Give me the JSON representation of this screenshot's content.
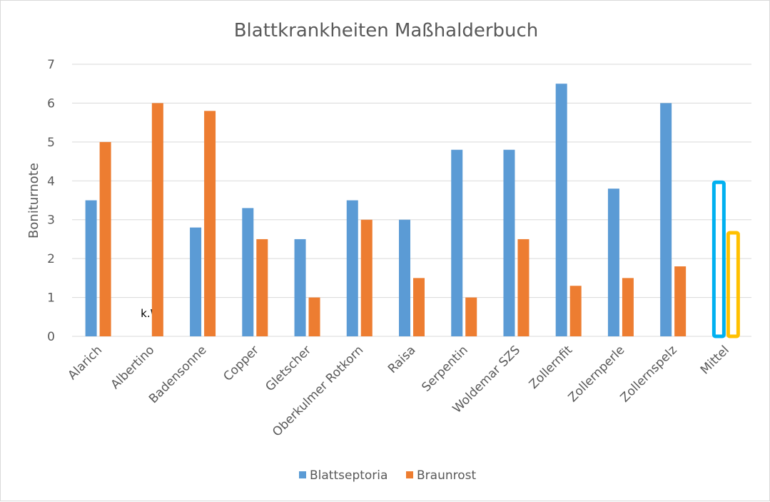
{
  "chart_data": {
    "type": "bar",
    "title": "Blattkrankheiten Maßhalderbuch",
    "xlabel": "",
    "ylabel": "Boniturnote",
    "ylim": [
      0,
      7
    ],
    "yticks": [
      "0",
      "1",
      "2",
      "3",
      "4",
      "5",
      "6",
      "7"
    ],
    "grid": true,
    "legend_position": "bottom",
    "categories": [
      "Alarich",
      "Albertino",
      "Badensonne",
      "Copper",
      "Gletscher",
      "Oberkulmer Rotkorn",
      "Raisa",
      "Serpentin",
      "Woldemar SZS",
      "Zollernfit",
      "Zollernperle",
      "Zollernspelz",
      "Mittel"
    ],
    "series": [
      {
        "name": "Blattseptoria",
        "color": "#5B9BD5",
        "values": [
          3.5,
          null,
          2.8,
          3.3,
          2.5,
          3.5,
          3.0,
          4.8,
          4.8,
          6.5,
          3.8,
          6.0,
          4.0
        ]
      },
      {
        "name": "Braunrost",
        "color": "#ED7D31",
        "values": [
          5.0,
          6.0,
          5.8,
          2.5,
          1.0,
          3.0,
          1.5,
          1.0,
          2.5,
          1.3,
          1.5,
          1.8,
          2.7
        ]
      }
    ],
    "highlight": {
      "category": "Mittel",
      "style": "outline",
      "colors": [
        "#00B0F0",
        "#FFC000"
      ]
    },
    "annotations": [
      {
        "category": "Albertino",
        "series": "Blattseptoria",
        "text": "k.W."
      }
    ]
  }
}
